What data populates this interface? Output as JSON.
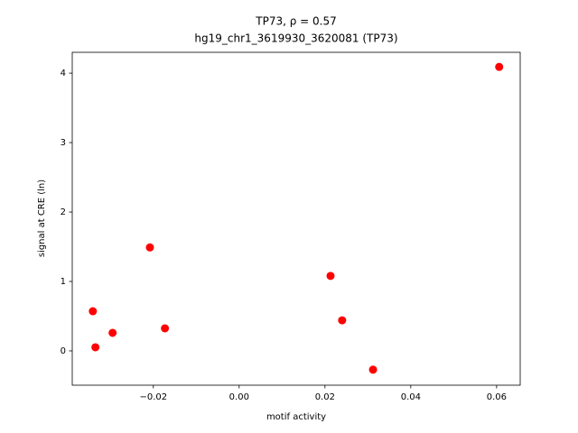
{
  "chart_data": {
    "type": "scatter",
    "title": [
      "TP73, ρ = 0.57",
      "hg19_chr1_3619930_3620081 (TP73)"
    ],
    "x_label": "motif activity",
    "y_label": "signal at CRE (ln)",
    "color": "red",
    "x": [
      -0.0341,
      -0.0335,
      -0.0295,
      -0.0208,
      -0.0173,
      0.0213,
      0.024,
      0.0312,
      0.0606
    ],
    "y": [
      0.571,
      0.052,
      0.26,
      1.49,
      0.325,
      1.08,
      0.44,
      -0.27,
      4.09
    ],
    "xlim": [
      -0.0389,
      0.0655
    ],
    "ylim": [
      -0.494,
      4.3
    ],
    "xticks": [
      {
        "value": -0.02,
        "label": "−0.02"
      },
      {
        "value": 0,
        "label": "0.00"
      },
      {
        "value": 0.02,
        "label": "0.02"
      },
      {
        "value": 0.04,
        "label": "0.04"
      },
      {
        "value": 0.06,
        "label": "0.06"
      }
    ],
    "yticks": [
      0,
      1,
      2,
      3,
      4
    ]
  }
}
